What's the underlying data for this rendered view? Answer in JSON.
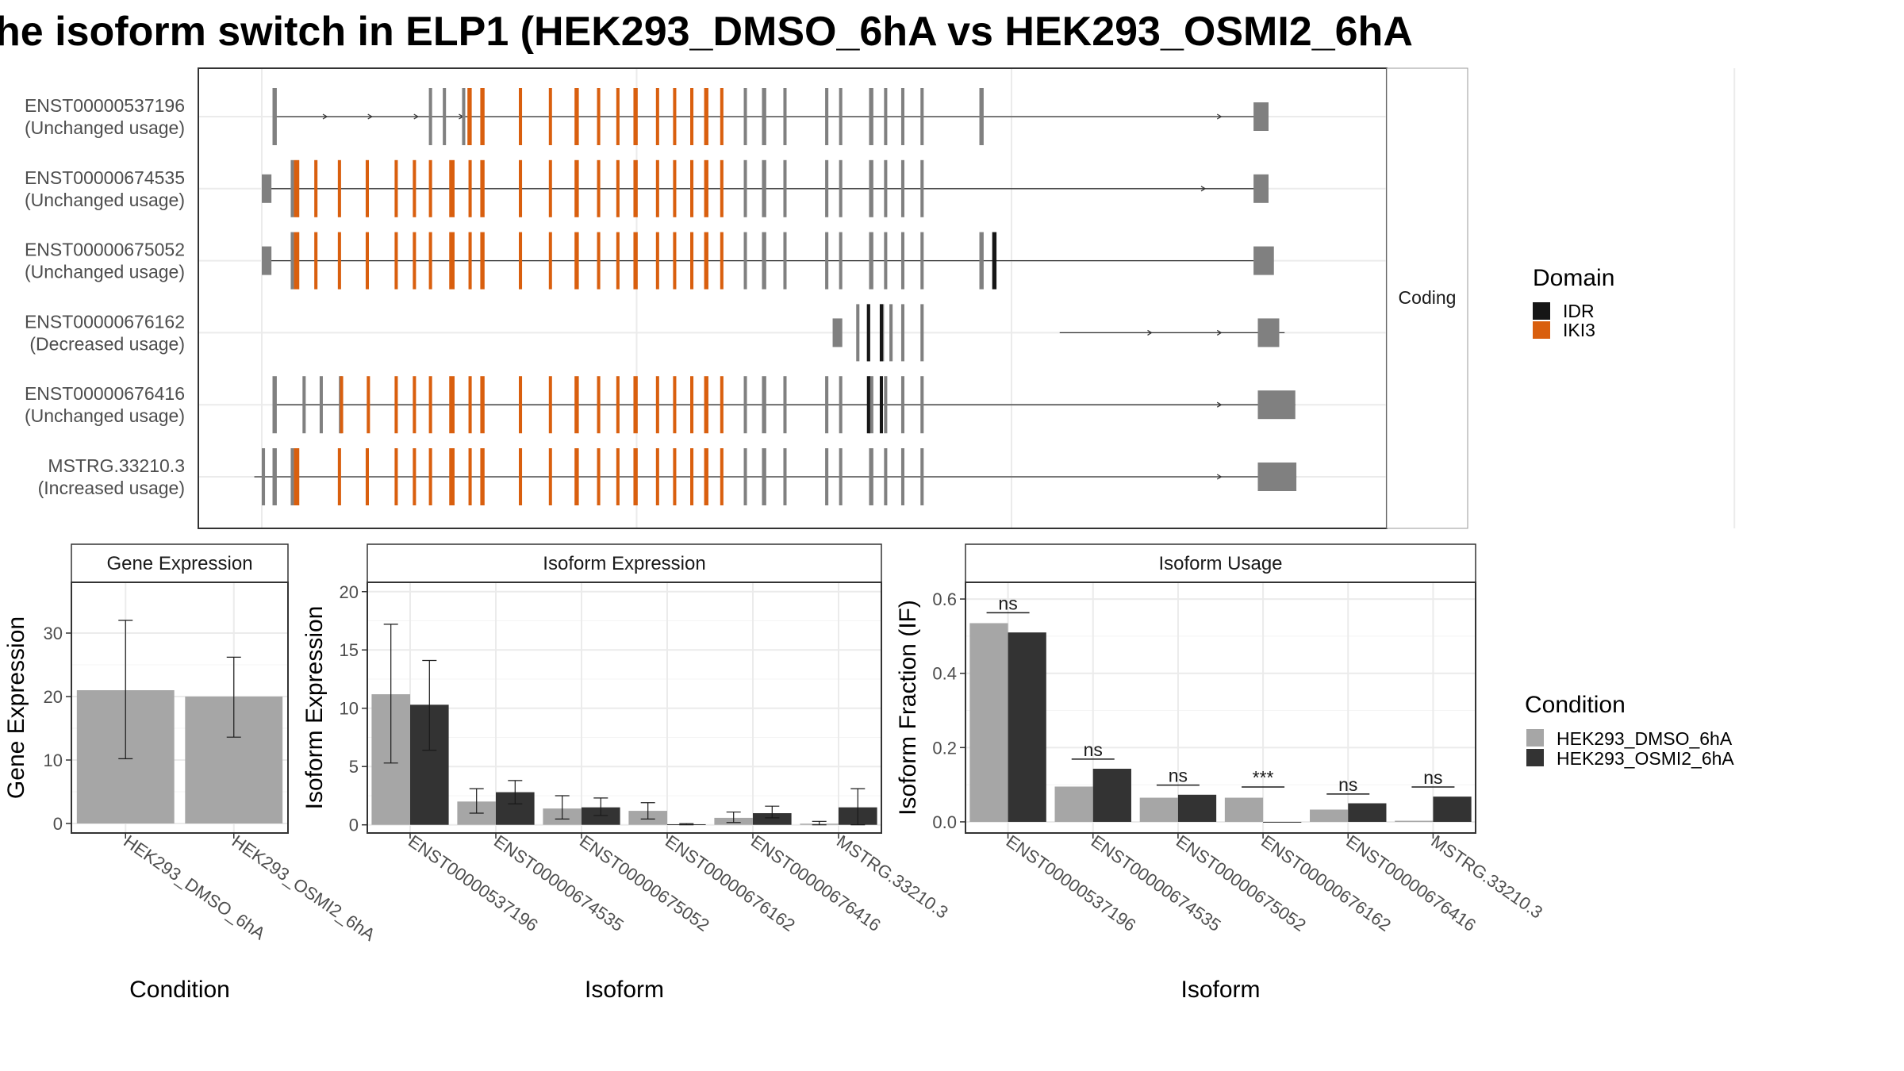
{
  "title": "he isoform switch in ELP1 (HEK293_DMSO_6hA vs HEK293_OSMI2_6hA",
  "colors": {
    "orange": "#D95F0E",
    "gray_exon": "#808080",
    "idr": "#161616",
    "dmso": "#A6A6A6",
    "osmi": "#333333",
    "panel_border": "#333333",
    "strip_fill": "#ffffff",
    "grid": "#EBEBEB",
    "intron": "#333333"
  },
  "transcripts": {
    "facet_label": "Coding",
    "genome_range": [
      0,
      1000
    ],
    "rows": [
      {
        "id": "ENST00000537196",
        "status": "(Unchanged usage)",
        "first": 10,
        "last": 935,
        "arrows": [
          60,
          102,
          145,
          187,
          895
        ]
      },
      {
        "id": "ENST00000674535",
        "status": "(Unchanged usage)",
        "first": 0,
        "last": 940,
        "arrows": [
          880
        ]
      },
      {
        "id": "ENST00000675052",
        "status": "(Unchanged usage)",
        "first": 0,
        "last": 926,
        "arrows": []
      },
      {
        "id": "ENST00000676162",
        "status": "(Decreased usage)",
        "first": 745,
        "last": 955,
        "arrows": [
          830,
          895
        ]
      },
      {
        "id": "ENST00000676416",
        "status": "(Unchanged usage)",
        "first": 10,
        "last": 965,
        "arrows": [
          895
        ]
      },
      {
        "id": "MSTRG.33210.3",
        "status": "(Increased usage)",
        "first": -7,
        "last": 966,
        "arrows": [
          895
        ]
      }
    ],
    "legend": {
      "title": "Domain",
      "items": [
        {
          "label": "IDR",
          "color": "#161616"
        },
        {
          "label": "IKI3",
          "color": "#D95F0E"
        }
      ]
    }
  },
  "gene_expression": {
    "strip_label": "Gene Expression",
    "xlabel": "Condition",
    "ylabel": "Gene Expression",
    "ylim": [
      -1.5,
      38
    ],
    "yticks": [
      0,
      10,
      20,
      30
    ],
    "categories": [
      "HEK293_DMSO_6hA",
      "HEK293_OSMI2_6hA"
    ],
    "values": [
      21,
      20
    ],
    "err_low": [
      10.2,
      13.6
    ],
    "err_high": [
      32,
      26.2
    ]
  },
  "isoform_expression": {
    "strip_label": "Isoform Expression",
    "xlabel": "Isoform",
    "ylabel": "Isoform Expression",
    "ylim": [
      -0.7,
      20.8
    ],
    "yticks": [
      0,
      5,
      10,
      15,
      20
    ],
    "categories": [
      "ENST00000537196",
      "ENST00000674535",
      "ENST00000675052",
      "ENST00000676162",
      "ENST00000676416",
      "MSTRG.33210.3"
    ],
    "series": [
      {
        "values": [
          11.2,
          2.0,
          1.4,
          1.2,
          0.6,
          0.1
        ],
        "err_low": [
          5.3,
          1.0,
          0.5,
          0.5,
          0.2,
          0.0
        ],
        "err_high": [
          17.2,
          3.1,
          2.5,
          1.9,
          1.1,
          0.3
        ]
      },
      {
        "values": [
          10.3,
          2.8,
          1.5,
          0.05,
          1.0,
          1.5
        ],
        "err_low": [
          6.4,
          1.8,
          0.8,
          0.0,
          0.6,
          0.0
        ],
        "err_high": [
          14.1,
          3.8,
          2.3,
          0.1,
          1.6,
          3.1
        ]
      }
    ]
  },
  "isoform_usage": {
    "strip_label": "Isoform Usage",
    "xlabel": "Isoform",
    "ylabel": "Isoform Fraction (IF)",
    "ylim": [
      -0.03,
      0.645
    ],
    "yticks": [
      0.0,
      0.2,
      0.4,
      0.6
    ],
    "ytick_labels": [
      "0.0",
      "0.2",
      "0.4",
      "0.6"
    ],
    "categories": [
      "ENST00000537196",
      "ENST00000674535",
      "ENST00000675052",
      "ENST00000676162",
      "ENST00000676416",
      "MSTRG.33210.3"
    ],
    "series": [
      {
        "values": [
          0.535,
          0.095,
          0.065,
          0.065,
          0.033,
          0.003
        ]
      },
      {
        "values": [
          0.51,
          0.143,
          0.073,
          0.0,
          0.05,
          0.068
        ]
      }
    ],
    "significance": [
      "ns",
      "ns",
      "ns",
      "***",
      "ns",
      "ns"
    ],
    "sig_level": [
      0.563,
      0.169,
      0.099,
      0.094,
      0.075,
      0.094
    ]
  },
  "condition_legend": {
    "title": "Condition",
    "items": [
      {
        "label": "HEK293_DMSO_6hA",
        "color": "#A6A6A6"
      },
      {
        "label": "HEK293_OSMI2_6hA",
        "color": "#333333"
      }
    ]
  }
}
